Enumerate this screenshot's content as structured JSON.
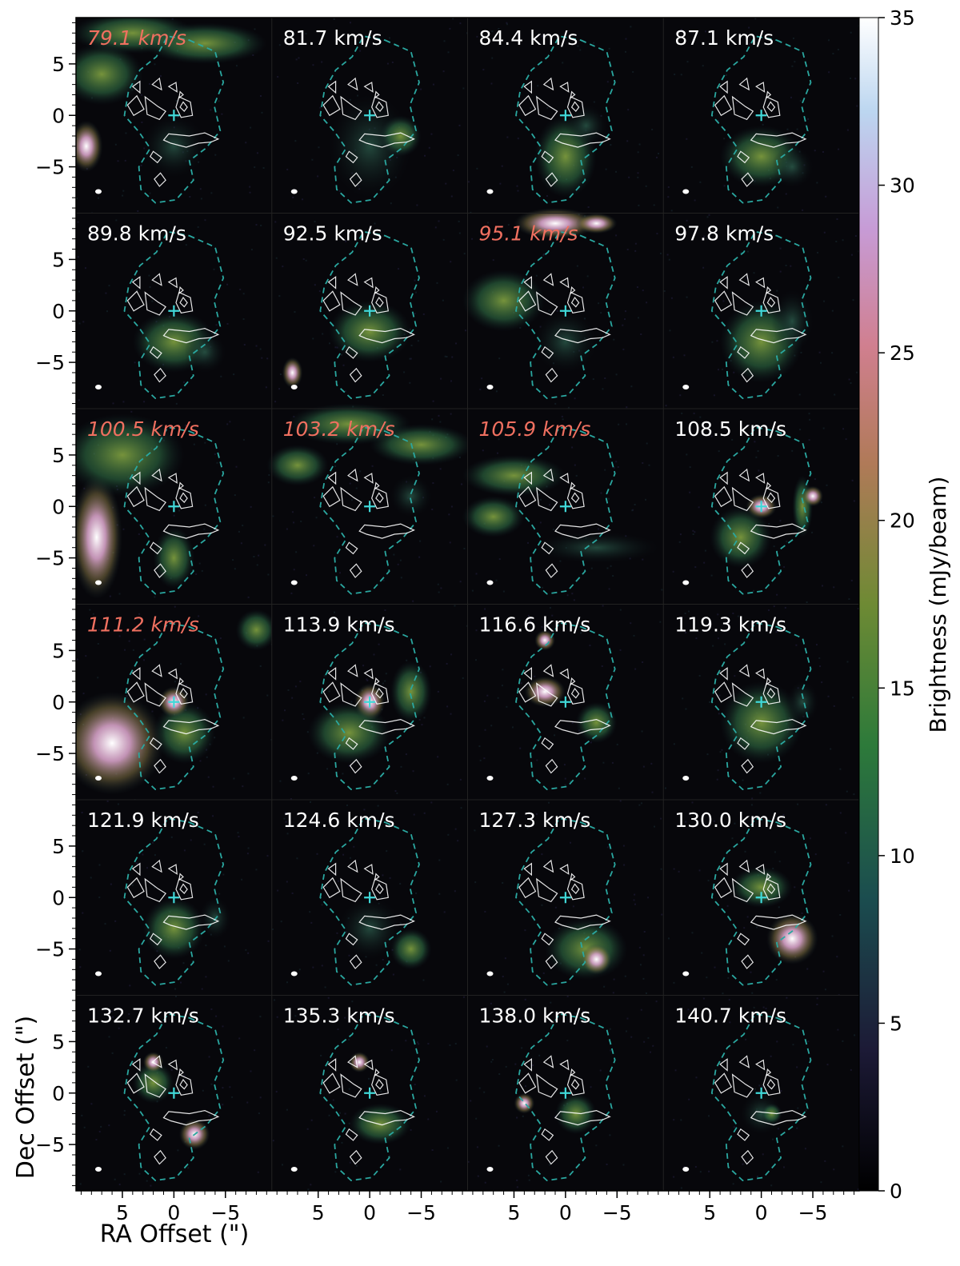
{
  "chart_data": {
    "type": "channel-map",
    "colormap": "cubehelix",
    "axes": {
      "xlabel": "RA Offset (\")",
      "ylabel": "Dec Offset (\")",
      "x_ticks": [
        "5",
        "0",
        "−5"
      ],
      "y_ticks": [
        "5",
        "0",
        "−5"
      ],
      "xlim": [
        9.5,
        -9.5
      ],
      "ylim": [
        -9.5,
        9.5
      ]
    },
    "colorbar": {
      "label": "Brightness (mJy/beam)",
      "min": 0,
      "max": 35,
      "ticks": [
        "0",
        "5",
        "10",
        "15",
        "20",
        "25",
        "30",
        "35"
      ]
    },
    "grid": {
      "rows": 6,
      "cols": 4
    },
    "panels": [
      {
        "velocity": "79.1 km/s",
        "highlight": true
      },
      {
        "velocity": "81.7 km/s",
        "highlight": false
      },
      {
        "velocity": "84.4 km/s",
        "highlight": false
      },
      {
        "velocity": "87.1 km/s",
        "highlight": false
      },
      {
        "velocity": "89.8 km/s",
        "highlight": false
      },
      {
        "velocity": "92.5 km/s",
        "highlight": false
      },
      {
        "velocity": "95.1 km/s",
        "highlight": true
      },
      {
        "velocity": "97.8 km/s",
        "highlight": false
      },
      {
        "velocity": "100.5 km/s",
        "highlight": true
      },
      {
        "velocity": "103.2 km/s",
        "highlight": true
      },
      {
        "velocity": "105.9 km/s",
        "highlight": true
      },
      {
        "velocity": "108.5 km/s",
        "highlight": false
      },
      {
        "velocity": "111.2 km/s",
        "highlight": true
      },
      {
        "velocity": "113.9 km/s",
        "highlight": false
      },
      {
        "velocity": "116.6 km/s",
        "highlight": false
      },
      {
        "velocity": "119.3 km/s",
        "highlight": false
      },
      {
        "velocity": "121.9 km/s",
        "highlight": false
      },
      {
        "velocity": "124.6 km/s",
        "highlight": false
      },
      {
        "velocity": "127.3 km/s",
        "highlight": false
      },
      {
        "velocity": "130.0 km/s",
        "highlight": false
      },
      {
        "velocity": "132.7 km/s",
        "highlight": false
      },
      {
        "velocity": "135.3 km/s",
        "highlight": false
      },
      {
        "velocity": "138.0 km/s",
        "highlight": false
      },
      {
        "velocity": "140.7 km/s",
        "highlight": false
      }
    ],
    "colors": {
      "label_normal": "#ffffff",
      "label_highlight": "#f07060",
      "outline_dashed": "#2aa7a0",
      "contours": "#ffffff",
      "center_marker": "#40d8d8"
    }
  }
}
